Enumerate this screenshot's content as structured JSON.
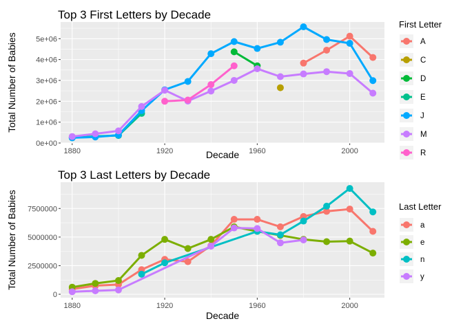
{
  "chart_data": [
    {
      "type": "line",
      "title": "Top 3 First Letters by Decade",
      "xlabel": "Decade",
      "ylabel": "Total Number of Babies",
      "xlim": [
        1875,
        2015
      ],
      "ylim": [
        0,
        5800000
      ],
      "x_ticks": [
        1880,
        1920,
        1960,
        2000
      ],
      "x_tick_labels": [
        "1880",
        "1920",
        "1960",
        "2000"
      ],
      "y_ticks": [
        0,
        1000000,
        2000000,
        3000000,
        4000000,
        5000000
      ],
      "y_tick_labels": [
        "0e+00",
        "1e+06",
        "2e+06",
        "3e+06",
        "4e+06",
        "5e+06"
      ],
      "legend_title": "First Letter",
      "legend_position": "right",
      "grid": true,
      "series": [
        {
          "name": "A",
          "color": "#F8766D",
          "x": [
            1980,
            1990,
            2000,
            2010
          ],
          "y": [
            3830000,
            4450000,
            5120000,
            4100000
          ]
        },
        {
          "name": "C",
          "color": "#B79F00",
          "x": [
            1970
          ],
          "y": [
            2650000
          ]
        },
        {
          "name": "D",
          "color": "#00BA38",
          "x": [
            1950,
            1960
          ],
          "y": [
            4370000,
            3700000
          ]
        },
        {
          "name": "E",
          "color": "#00C08B",
          "x": [
            1880,
            1890,
            1900,
            1910
          ],
          "y": [
            250000,
            320000,
            360000,
            1420000
          ]
        },
        {
          "name": "J",
          "color": "#00A9FF",
          "x": [
            1880,
            1890,
            1900,
            1910,
            1920,
            1930,
            1940,
            1950,
            1960,
            1970,
            1980,
            1990,
            2000,
            2010
          ],
          "y": [
            250000,
            290000,
            380000,
            1550000,
            2550000,
            2950000,
            4280000,
            4860000,
            4530000,
            4830000,
            5570000,
            4960000,
            4780000,
            2990000
          ]
        },
        {
          "name": "M",
          "color": "#C77CFF",
          "x": [
            1880,
            1890,
            1900,
            1910,
            1920,
            1930,
            1940,
            1950,
            1960,
            1970,
            1980,
            1990,
            2000,
            2010
          ],
          "y": [
            310000,
            440000,
            580000,
            1750000,
            2530000,
            2010000,
            2490000,
            3000000,
            3560000,
            3180000,
            3310000,
            3420000,
            3330000,
            2390000
          ]
        },
        {
          "name": "R",
          "color": "#FF61CC",
          "x": [
            1920,
            1930,
            1940,
            1950
          ],
          "y": [
            2000000,
            2060000,
            2800000,
            3700000
          ]
        }
      ]
    },
    {
      "type": "line",
      "title": "Top 3 Last Letters by Decade",
      "xlabel": "Decade",
      "ylabel": "Total Number of Babies",
      "xlim": [
        1875,
        2015
      ],
      "ylim": [
        -300000,
        9800000
      ],
      "x_ticks": [
        1880,
        1920,
        1960,
        2000
      ],
      "x_tick_labels": [
        "1880",
        "1920",
        "1960",
        "2000"
      ],
      "y_ticks": [
        0,
        2500000,
        5000000,
        7500000
      ],
      "y_tick_labels": [
        "0",
        "2500000",
        "5000000",
        "7500000"
      ],
      "legend_title": "Last Letter",
      "legend_position": "right",
      "grid": true,
      "series": [
        {
          "name": "a",
          "color": "#F8766D",
          "x": [
            1880,
            1890,
            1900,
            1910,
            1920,
            1930,
            1940,
            1950,
            1960,
            1970,
            1980,
            1990,
            2000,
            2010
          ],
          "y": [
            450000,
            750000,
            850000,
            2150000,
            3050000,
            2850000,
            4250000,
            6550000,
            6550000,
            5900000,
            6800000,
            7250000,
            7450000,
            5500000
          ]
        },
        {
          "name": "e",
          "color": "#7CAE00",
          "x": [
            1880,
            1890,
            1900,
            1910,
            1920,
            1930,
            1940,
            1950,
            1960,
            1970,
            1980,
            1990,
            2000,
            2010
          ],
          "y": [
            620000,
            950000,
            1200000,
            3400000,
            4800000,
            4000000,
            4800000,
            5900000,
            5500000,
            5150000,
            4800000,
            4600000,
            4650000,
            3600000
          ]
        },
        {
          "name": "n",
          "color": "#00BFC4",
          "x": [
            1910,
            1920,
            1960,
            1970,
            1980,
            1990,
            2000,
            2010
          ],
          "y": [
            1750000,
            2750000,
            5500000,
            5200000,
            6400000,
            7700000,
            9250000,
            7200000
          ]
        },
        {
          "name": "y",
          "color": "#C77CFF",
          "x": [
            1880,
            1890,
            1900,
            1940,
            1950,
            1960,
            1970,
            1980
          ],
          "y": [
            220000,
            300000,
            380000,
            4200000,
            5800000,
            5750000,
            4500000,
            4750000
          ]
        }
      ]
    }
  ]
}
